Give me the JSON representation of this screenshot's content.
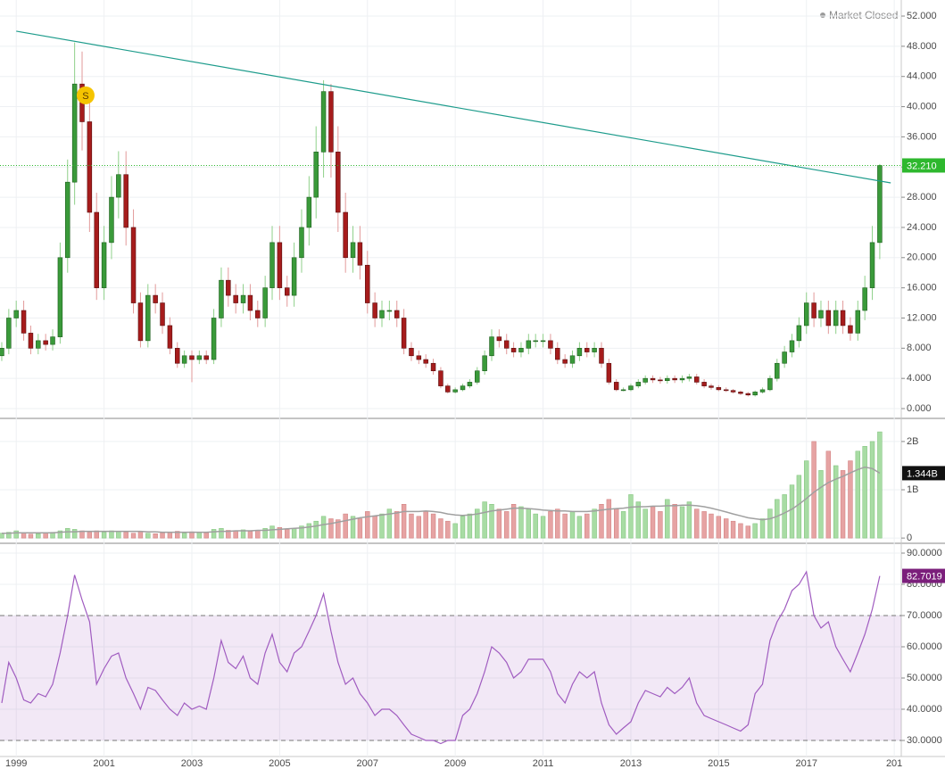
{
  "chart_data": {
    "type": "candlestick",
    "status": "Market Closed",
    "x": [
      1998.67,
      1998.83,
      1999.0,
      1999.17,
      1999.33,
      1999.5,
      1999.67,
      1999.83,
      2000.0,
      2000.17,
      2000.33,
      2000.5,
      2000.67,
      2000.83,
      2001.0,
      2001.17,
      2001.33,
      2001.5,
      2001.67,
      2001.83,
      2002.0,
      2002.17,
      2002.33,
      2002.5,
      2002.67,
      2002.83,
      2003.0,
      2003.17,
      2003.33,
      2003.5,
      2003.67,
      2003.83,
      2004.0,
      2004.17,
      2004.33,
      2004.5,
      2004.67,
      2004.83,
      2005.0,
      2005.17,
      2005.33,
      2005.5,
      2005.67,
      2005.83,
      2006.0,
      2006.17,
      2006.33,
      2006.5,
      2006.67,
      2006.83,
      2007.0,
      2007.17,
      2007.33,
      2007.5,
      2007.67,
      2007.83,
      2008.0,
      2008.17,
      2008.33,
      2008.5,
      2008.67,
      2008.83,
      2009.0,
      2009.17,
      2009.33,
      2009.5,
      2009.67,
      2009.83,
      2010.0,
      2010.17,
      2010.33,
      2010.5,
      2010.67,
      2010.83,
      2011.0,
      2011.17,
      2011.33,
      2011.5,
      2011.67,
      2011.83,
      2012.0,
      2012.17,
      2012.33,
      2012.5,
      2012.67,
      2012.83,
      2013.0,
      2013.17,
      2013.33,
      2013.5,
      2013.67,
      2013.83,
      2014.0,
      2014.17,
      2014.33,
      2014.5,
      2014.67,
      2014.83,
      2015.0,
      2015.17,
      2015.33,
      2015.5,
      2015.67,
      2015.83,
      2016.0,
      2016.17,
      2016.33,
      2016.5,
      2016.67,
      2016.83,
      2017.0,
      2017.17,
      2017.33,
      2017.5,
      2017.67,
      2017.83,
      2018.0,
      2018.17,
      2018.33,
      2018.5,
      2018.67
    ],
    "open": [
      7,
      8,
      12,
      13,
      10,
      8,
      9,
      8.5,
      9.5,
      20,
      30,
      43,
      38,
      26,
      16,
      22,
      28,
      31,
      24,
      14,
      9,
      15,
      14,
      11,
      8,
      6,
      7,
      6.5,
      7,
      6.5,
      12,
      17,
      15,
      14,
      15,
      13,
      12,
      16,
      22,
      16,
      15,
      20,
      24,
      28,
      34,
      42,
      34,
      26,
      20,
      22,
      19,
      14,
      12,
      13,
      13,
      12,
      8,
      7,
      6.5,
      6,
      5,
      3,
      2.2,
      2.5,
      3,
      3.5,
      5,
      7,
      9.5,
      9,
      8,
      7.5,
      8,
      9,
      9,
      9,
      8,
      6.5,
      6,
      7,
      8,
      7.5,
      8,
      6,
      3.5,
      2.5,
      2.5,
      3,
      3.5,
      4,
      3.8,
      3.7,
      4,
      3.8,
      4,
      4.2,
      3.5,
      3,
      2.8,
      2.5,
      2.4,
      2.2,
      2,
      1.8,
      2.2,
      2.5,
      4,
      6,
      7.5,
      9,
      11,
      14,
      12,
      13,
      11,
      13,
      11,
      10,
      13,
      16,
      22
    ],
    "high": [
      8.8,
      13.2,
      14.3,
      14.3,
      11,
      9.9,
      9.9,
      10.5,
      22,
      33,
      48.5,
      47.3,
      41.8,
      28.6,
      24.2,
      30.8,
      34.1,
      34.1,
      26.4,
      15.4,
      16.5,
      16.5,
      15.4,
      12.1,
      8.8,
      7.7,
      7.7,
      7.7,
      7.7,
      13.2,
      18.7,
      18.7,
      16.5,
      16.5,
      16.5,
      14.3,
      17.6,
      24.2,
      24.2,
      17.6,
      22,
      26.4,
      30.8,
      37.4,
      43.5,
      43,
      37.4,
      28.6,
      24.2,
      24.2,
      20.9,
      15.4,
      14.3,
      14.3,
      14.3,
      13.2,
      8.8,
      7.7,
      7.2,
      6.6,
      5.5,
      3.3,
      2.8,
      3.3,
      3.9,
      5.5,
      7.7,
      10.5,
      10.5,
      9.9,
      8.8,
      8.8,
      9.9,
      9.9,
      9.9,
      9.9,
      8.8,
      7.2,
      7.7,
      8.8,
      8.8,
      8.8,
      8.8,
      6.6,
      3.9,
      2.8,
      3.3,
      3.9,
      4.4,
      4.4,
      4.2,
      4.4,
      4.4,
      4.4,
      4.6,
      4.6,
      3.9,
      3.3,
      3.1,
      2.8,
      2.6,
      2.4,
      2.2,
      2.4,
      2.8,
      4.4,
      6.6,
      8.3,
      9.9,
      12.1,
      15.4,
      15.4,
      14.3,
      14.3,
      14.3,
      14.3,
      12.1,
      14.3,
      17.6,
      24.2,
      32.4
    ],
    "low": [
      6.3,
      7.2,
      10.8,
      9,
      7.2,
      7.2,
      7.7,
      7.7,
      8.6,
      18,
      27,
      34.2,
      23.4,
      14.4,
      14.4,
      19.8,
      25.2,
      21.6,
      12.6,
      8.1,
      8.1,
      12.6,
      9.9,
      7.2,
      5.4,
      5.4,
      3.5,
      5.9,
      5.9,
      5.9,
      10.8,
      13.5,
      12.6,
      12.6,
      11.7,
      10.8,
      10.8,
      14.4,
      14.4,
      13.5,
      13.5,
      18,
      21.6,
      25.2,
      30.6,
      30.6,
      23.4,
      18,
      18,
      17.1,
      12.6,
      10.8,
      10.8,
      11.7,
      10.8,
      7.2,
      6.3,
      5.9,
      5.4,
      4.5,
      2.7,
      2,
      2,
      2.3,
      2.7,
      3.2,
      4.5,
      6.3,
      8.1,
      7.2,
      6.8,
      6.8,
      7.2,
      8.1,
      8.1,
      7.2,
      5.9,
      5.4,
      5.4,
      6.3,
      6.8,
      6.8,
      5.4,
      3.2,
      2.3,
      2.3,
      2.3,
      2.7,
      3.2,
      3.4,
      3.3,
      3.3,
      3.4,
      3.4,
      3.6,
      3.2,
      2.7,
      2.5,
      2.3,
      2.2,
      2,
      1.8,
      1.6,
      1.6,
      2,
      2.3,
      3.6,
      5.4,
      6.8,
      8.1,
      9.9,
      10.8,
      10.8,
      9.9,
      9.9,
      9.9,
      9,
      9,
      11.7,
      14.4,
      19.8
    ],
    "close": [
      8,
      12,
      13,
      10,
      8,
      9,
      8.5,
      9.5,
      20,
      30,
      43,
      38,
      26,
      16,
      22,
      28,
      31,
      24,
      14,
      9,
      15,
      14,
      11,
      8,
      6,
      7,
      6.5,
      7,
      6.5,
      12,
      17,
      15,
      14,
      15,
      13,
      12,
      16,
      22,
      16,
      15,
      20,
      24,
      28,
      34,
      42,
      34,
      26,
      20,
      22,
      19,
      14,
      12,
      13,
      13,
      12,
      8,
      7,
      6.5,
      6,
      5,
      3,
      2.2,
      2.5,
      3,
      3.5,
      5,
      7,
      9.5,
      9,
      8,
      7.5,
      8,
      9,
      9,
      9,
      8,
      6.5,
      6,
      7,
      8,
      7.5,
      8,
      6,
      3.5,
      2.5,
      2.5,
      3,
      3.5,
      4,
      3.8,
      3.7,
      4,
      3.8,
      4,
      4.2,
      3.5,
      3,
      2.8,
      2.5,
      2.4,
      2.2,
      2,
      1.8,
      2.2,
      2.5,
      4,
      6,
      7.5,
      9,
      11,
      14,
      12,
      13,
      11,
      13,
      11,
      10,
      13,
      16,
      22,
      32.21
    ],
    "up_color": "#3a9a3a",
    "down_color": "#a61c1c",
    "xlim": [
      1998.63,
      2019.16
    ],
    "xticks": [
      1999,
      2001,
      2003,
      2005,
      2007,
      2009,
      2011,
      2013,
      2015,
      2017,
      {
        "value": 2019,
        "label": "201"
      }
    ],
    "ylim": [
      -1.18,
      54.13
    ],
    "yticks": [
      {
        "value": 0,
        "label": "0.000"
      },
      {
        "value": 4,
        "label": "4.000"
      },
      {
        "value": 8,
        "label": "8.000"
      },
      {
        "value": 12,
        "label": "12.000"
      },
      {
        "value": 16,
        "label": "16.000"
      },
      {
        "value": 20,
        "label": "20.000"
      },
      {
        "value": 24,
        "label": "24.000"
      },
      {
        "value": 28,
        "label": "28.000"
      },
      {
        "value": 32,
        "label": "32.000"
      },
      {
        "value": 36,
        "label": "36.000"
      },
      {
        "value": 40,
        "label": "40.000"
      },
      {
        "value": 44,
        "label": "44.000"
      },
      {
        "value": 48,
        "label": "48.000"
      },
      {
        "value": 52,
        "label": "52.000"
      }
    ],
    "grid": true,
    "last_price": {
      "value": 32.21,
      "label": "32.210",
      "color": "#2eb82e"
    },
    "trendline": {
      "x": [
        1999,
        2018.92
      ],
      "y": [
        50,
        29.9
      ],
      "color": "#1e9c8c"
    },
    "marker": {
      "label": "S",
      "x": 2000.58,
      "y": 41.5,
      "color": "#f5c400"
    },
    "volume": {
      "up_color": "#a8dca4",
      "down_color": "#e6a3a3",
      "ma_color": "#a0a0a0",
      "values": [
        0.1,
        0.12,
        0.15,
        0.1,
        0.08,
        0.09,
        0.1,
        0.12,
        0.15,
        0.2,
        0.18,
        0.15,
        0.12,
        0.15,
        0.12,
        0.15,
        0.14,
        0.12,
        0.1,
        0.13,
        0.1,
        0.09,
        0.11,
        0.12,
        0.14,
        0.1,
        0.13,
        0.12,
        0.11,
        0.18,
        0.2,
        0.16,
        0.15,
        0.17,
        0.14,
        0.16,
        0.2,
        0.25,
        0.22,
        0.18,
        0.2,
        0.25,
        0.3,
        0.35,
        0.45,
        0.4,
        0.38,
        0.5,
        0.45,
        0.4,
        0.55,
        0.45,
        0.5,
        0.6,
        0.55,
        0.7,
        0.5,
        0.45,
        0.55,
        0.5,
        0.4,
        0.35,
        0.3,
        0.45,
        0.5,
        0.6,
        0.75,
        0.7,
        0.6,
        0.55,
        0.7,
        0.65,
        0.6,
        0.5,
        0.45,
        0.55,
        0.6,
        0.5,
        0.55,
        0.45,
        0.5,
        0.6,
        0.7,
        0.8,
        0.6,
        0.55,
        0.9,
        0.75,
        0.6,
        0.65,
        0.55,
        0.8,
        0.7,
        0.65,
        0.75,
        0.6,
        0.55,
        0.5,
        0.45,
        0.4,
        0.35,
        0.3,
        0.25,
        0.3,
        0.4,
        0.6,
        0.8,
        0.9,
        1.1,
        1.3,
        1.6,
        2.0,
        1.4,
        1.8,
        1.5,
        1.4,
        1.6,
        1.8,
        1.9,
        2.0,
        2.2
      ],
      "ma": [
        0.1,
        0.1,
        0.11,
        0.11,
        0.11,
        0.11,
        0.11,
        0.11,
        0.12,
        0.13,
        0.13,
        0.14,
        0.14,
        0.14,
        0.14,
        0.14,
        0.14,
        0.14,
        0.14,
        0.14,
        0.13,
        0.13,
        0.12,
        0.12,
        0.12,
        0.12,
        0.12,
        0.12,
        0.12,
        0.13,
        0.14,
        0.14,
        0.15,
        0.15,
        0.15,
        0.16,
        0.16,
        0.17,
        0.18,
        0.19,
        0.2,
        0.21,
        0.23,
        0.25,
        0.28,
        0.3,
        0.33,
        0.36,
        0.39,
        0.42,
        0.44,
        0.46,
        0.48,
        0.5,
        0.52,
        0.55,
        0.55,
        0.55,
        0.56,
        0.55,
        0.53,
        0.5,
        0.48,
        0.47,
        0.48,
        0.5,
        0.53,
        0.56,
        0.58,
        0.6,
        0.62,
        0.62,
        0.61,
        0.6,
        0.58,
        0.57,
        0.56,
        0.56,
        0.55,
        0.55,
        0.55,
        0.56,
        0.58,
        0.6,
        0.61,
        0.62,
        0.64,
        0.65,
        0.65,
        0.66,
        0.66,
        0.67,
        0.67,
        0.68,
        0.68,
        0.67,
        0.65,
        0.62,
        0.58,
        0.54,
        0.5,
        0.46,
        0.42,
        0.4,
        0.38,
        0.4,
        0.45,
        0.52,
        0.6,
        0.7,
        0.82,
        0.95,
        1.05,
        1.15,
        1.22,
        1.28,
        1.35,
        1.42,
        1.47,
        1.44,
        1.344
      ],
      "ylim": [
        -0.09,
        2.46
      ],
      "yticks": [
        0,
        {
          "value": 1,
          "label": "1B"
        },
        {
          "value": 2,
          "label": "2B"
        }
      ],
      "last": {
        "value": 1.344,
        "label": "1.344B"
      }
    },
    "rsi": {
      "color": "#a05cc0",
      "values": [
        42,
        55,
        50,
        43,
        42,
        45,
        44,
        48,
        58,
        70,
        83,
        75,
        68,
        48,
        53,
        57,
        58,
        50,
        45,
        40,
        47,
        46,
        43,
        40,
        38,
        42,
        40,
        41,
        40,
        50,
        62,
        55,
        53,
        57,
        50,
        48,
        58,
        64,
        55,
        52,
        58,
        60,
        65,
        70,
        77,
        65,
        55,
        48,
        50,
        45,
        42,
        38,
        40,
        40,
        38,
        35,
        32,
        31,
        30,
        30,
        29,
        30,
        30,
        38,
        40,
        45,
        52,
        60,
        58,
        55,
        50,
        52,
        56,
        56,
        56,
        52,
        45,
        42,
        48,
        52,
        50,
        52,
        42,
        35,
        32,
        34,
        36,
        42,
        46,
        45,
        44,
        47,
        45,
        47,
        50,
        42,
        38,
        37,
        36,
        35,
        34,
        33,
        35,
        45,
        48,
        62,
        68,
        72,
        78,
        80,
        84,
        70,
        66,
        68,
        60,
        56,
        52,
        58,
        64,
        72,
        82.7019
      ],
      "ylim": [
        25.43,
        92.86
      ],
      "yticks": [
        {
          "value": 30,
          "label": "30.0000"
        },
        {
          "value": 40,
          "label": "40.0000"
        },
        {
          "value": 50,
          "label": "50.0000"
        },
        {
          "value": 60,
          "label": "60.0000"
        },
        {
          "value": 70,
          "label": "70.0000"
        },
        {
          "value": 80,
          "label": "80.0000"
        },
        {
          "value": 90,
          "label": "90.0000"
        }
      ],
      "band": [
        30,
        70
      ],
      "last": {
        "value": 82.7019,
        "label": "82.7019"
      }
    }
  }
}
